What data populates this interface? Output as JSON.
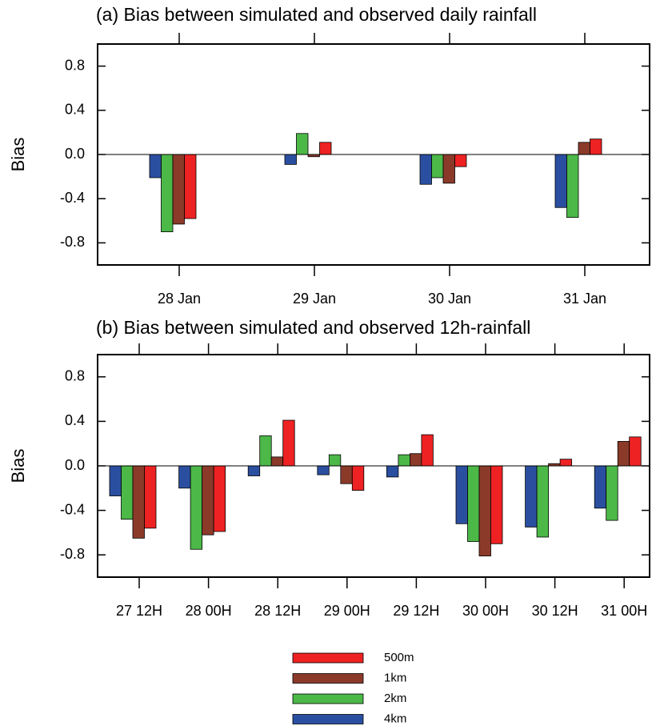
{
  "chart_data": [
    {
      "type": "bar",
      "title": "(a) Bias between simulated and observed daily rainfall",
      "y_label": "Bias",
      "categories": [
        "28 Jan",
        "29 Jan",
        "30 Jan",
        "31 Jan"
      ],
      "series": [
        {
          "name": "4km",
          "color": "#2b4fa0",
          "values": [
            -0.21,
            -0.09,
            -0.27,
            -0.48
          ]
        },
        {
          "name": "2km",
          "color": "#4cb848",
          "values": [
            -0.7,
            0.19,
            -0.21,
            -0.57
          ]
        },
        {
          "name": "1km",
          "color": "#8b3a2a",
          "values": [
            -0.63,
            -0.02,
            -0.26,
            0.11
          ]
        },
        {
          "name": "500m",
          "color": "#ee2222",
          "values": [
            -0.58,
            0.11,
            -0.11,
            0.14
          ]
        }
      ],
      "ylim": [
        -1,
        1
      ],
      "yticks": [
        -0.8,
        -0.4,
        {
          "value": 0,
          "label": "0.0"
        },
        0.4,
        0.8
      ]
    },
    {
      "type": "bar",
      "title": "(b) Bias between simulated and observed 12h-rainfall",
      "y_label": "Bias",
      "categories": [
        "27 12H",
        "28 00H",
        "28 12H",
        "29 00H",
        "29 12H",
        "30 00H",
        "30 12H",
        "31 00H"
      ],
      "series": [
        {
          "color": "#2b4fa0",
          "values": [
            -0.27,
            -0.2,
            -0.09,
            -0.08,
            -0.1,
            -0.52,
            -0.55,
            -0.38
          ]
        },
        {
          "color": "#4cb848",
          "values": [
            -0.48,
            -0.75,
            0.27,
            0.1,
            0.1,
            -0.68,
            -0.64,
            -0.49
          ]
        },
        {
          "color": "#8b3a2a",
          "values": [
            -0.65,
            -0.62,
            0.08,
            -0.16,
            0.11,
            -0.81,
            0.02,
            0.22
          ]
        },
        {
          "color": "#ee2222",
          "values": [
            -0.56,
            -0.59,
            0.41,
            -0.22,
            0.28,
            -0.7,
            0.06,
            0.26
          ]
        }
      ],
      "ylim": [
        -1,
        1
      ],
      "yticks": [
        -0.8,
        -0.4,
        {
          "value": 0,
          "label": "0.0"
        },
        0.4,
        0.8
      ]
    }
  ]
}
